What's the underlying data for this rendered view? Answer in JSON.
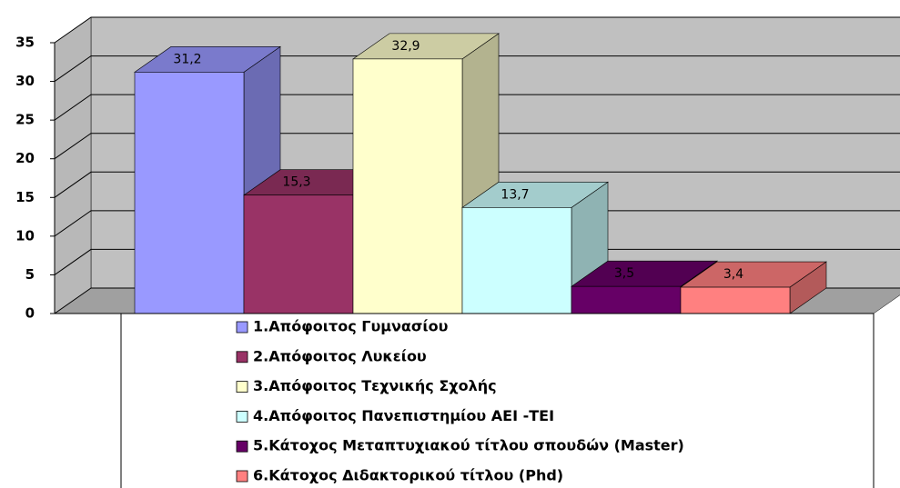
{
  "chart_data": {
    "type": "bar3d",
    "series": [
      {
        "name": "1.Απόφοιτος Γυμνασίου",
        "color": "#9999ff",
        "values": [
          31.2
        ],
        "value_labels": [
          "31,2"
        ]
      },
      {
        "name": "2.Απόφοιτος Λυκείου",
        "color": "#993366",
        "values": [
          15.3
        ],
        "value_labels": [
          "15,3"
        ]
      },
      {
        "name": "3.Απόφοιτος Τεχνικής Σχολής",
        "color": "#ffffcc",
        "values": [
          32.9
        ],
        "value_labels": [
          "32,9"
        ]
      },
      {
        "name": "4.Απόφοιτος Πανεπιστημίου ΑΕΙ -ΤΕΙ",
        "color": "#ccffff",
        "values": [
          13.7
        ],
        "value_labels": [
          "13,7"
        ]
      },
      {
        "name": "5.Κάτοχος Μεταπτυχιακού τίτλου σπουδών (Master)",
        "color": "#660066",
        "values": [
          3.5
        ],
        "value_labels": [
          "3,5"
        ]
      },
      {
        "name": "6.Κάτοχος Διδακτορικού τίτλου (Phd)",
        "color": "#ff8080",
        "values": [
          3.4
        ],
        "value_labels": [
          "3,4"
        ]
      }
    ],
    "ylim": [
      0,
      35
    ],
    "yticks": [
      0,
      5,
      10,
      15,
      20,
      25,
      30,
      35
    ],
    "grid": true
  }
}
